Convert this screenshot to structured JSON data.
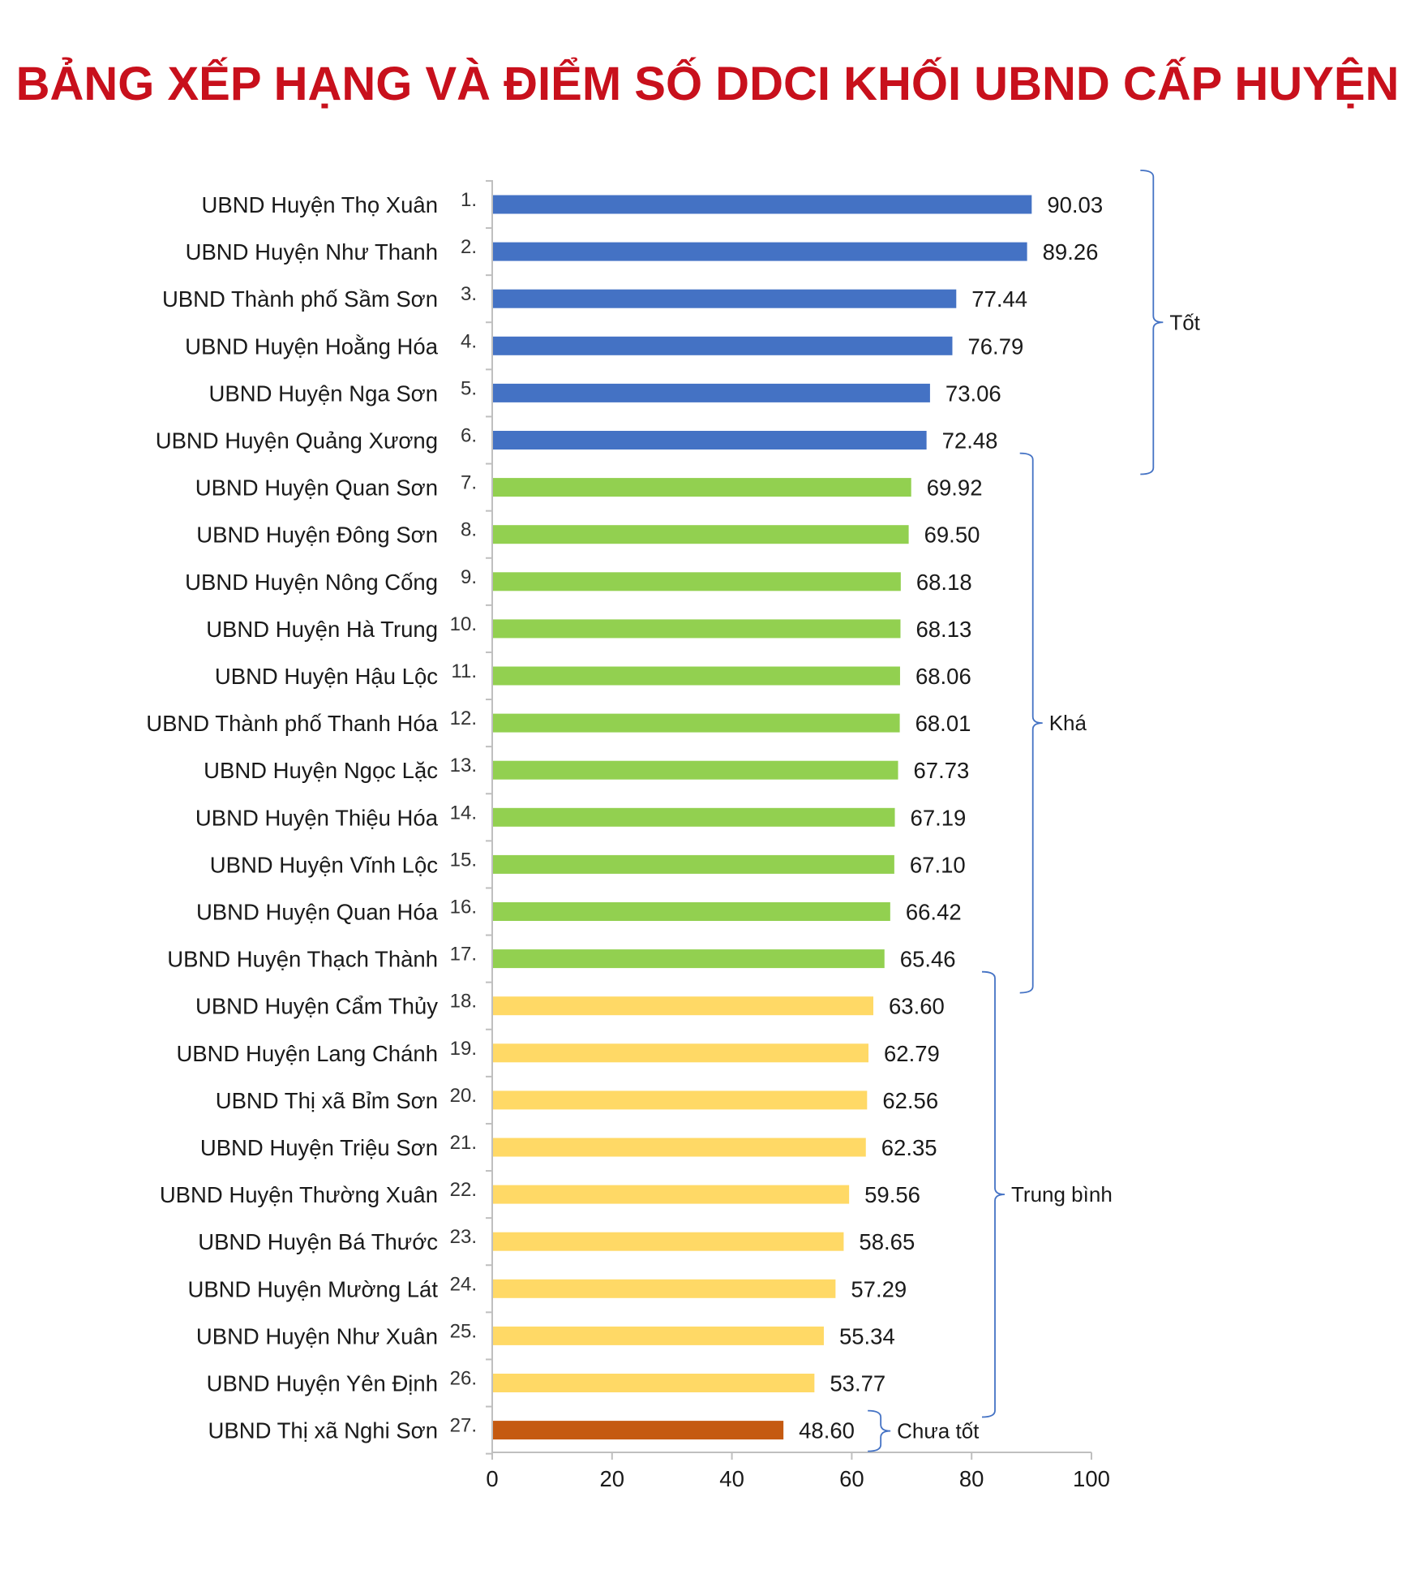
{
  "title": "BẢNG XẾP HẠNG VÀ ĐIỂM SỐ DDCI KHỐI UBND CẤP HUYỆN",
  "chart_data": {
    "type": "bar",
    "orientation": "horizontal",
    "title": "BẢNG XẾP HẠNG VÀ ĐIỂM SỐ DDCI KHỐI UBND CẤP HUYỆN",
    "xlim": [
      0,
      100
    ],
    "xticks": [
      "0",
      "20",
      "40",
      "60",
      "80",
      "100"
    ],
    "grid": false,
    "categories": [
      "UBND Huyện Thọ Xuân",
      "UBND Huyện Như Thanh",
      "UBND Thành phố Sầm Sơn",
      "UBND Huyện Hoằng Hóa",
      "UBND Huyện Nga Sơn",
      "UBND Huyện Quảng Xương",
      "UBND Huyện Quan Sơn",
      "UBND Huyện Đông Sơn",
      "UBND Huyện Nông Cống",
      "UBND Huyện Hà Trung",
      "UBND Huyện Hậu Lộc",
      "UBND Thành phố Thanh Hóa",
      "UBND Huyện Ngọc Lặc",
      "UBND Huyện Thiệu Hóa",
      "UBND Huyện Vĩnh Lộc",
      "UBND Huyện Quan Hóa",
      "UBND Huyện Thạch Thành",
      "UBND Huyện Cẩm Thủy",
      "UBND Huyện Lang Chánh",
      "UBND Thị xã Bỉm Sơn",
      "UBND Huyện Triệu Sơn",
      "UBND Huyện Thường Xuân",
      "UBND Huyện Bá Thước",
      "UBND Huyện Mường Lát",
      "UBND Huyện Như Xuân",
      "UBND Huyện Yên Định",
      "UBND Thị xã Nghi Sơn"
    ],
    "ranks": [
      "1.",
      "2.",
      "3.",
      "4.",
      "5.",
      "6.",
      "7.",
      "8.",
      "9.",
      "10.",
      "11.",
      "12.",
      "13.",
      "14.",
      "15.",
      "16.",
      "17.",
      "18.",
      "19.",
      "20.",
      "21.",
      "22.",
      "23.",
      "24.",
      "25.",
      "26.",
      "27."
    ],
    "values": [
      90.03,
      89.26,
      77.44,
      76.79,
      73.06,
      72.48,
      69.92,
      69.5,
      68.18,
      68.13,
      68.06,
      68.01,
      67.73,
      67.19,
      67.1,
      66.42,
      65.46,
      63.6,
      62.79,
      62.56,
      62.35,
      59.56,
      58.65,
      57.29,
      55.34,
      53.77,
      48.6
    ],
    "value_labels": [
      "90.03",
      "89.26",
      "77.44",
      "76.79",
      "73.06",
      "72.48",
      "69.92",
      "69.50",
      "68.18",
      "68.13",
      "68.06",
      "68.01",
      "67.73",
      "67.19",
      "67.10",
      "66.42",
      "65.46",
      "63.60",
      "62.79",
      "62.56",
      "62.35",
      "59.56",
      "58.65",
      "57.29",
      "55.34",
      "53.77",
      "48.60"
    ],
    "groups": [
      {
        "name": "Tốt",
        "first": 0,
        "last": 5,
        "color": "#4472c4"
      },
      {
        "name": "Khá",
        "first": 6,
        "last": 16,
        "color": "#92d050"
      },
      {
        "name": "Trung bình",
        "first": 17,
        "last": 25,
        "color": "#ffd966"
      },
      {
        "name": "Chưa tốt",
        "first": 26,
        "last": 26,
        "color": "#c55a11"
      }
    ],
    "bracket_color": "#4472c4"
  }
}
